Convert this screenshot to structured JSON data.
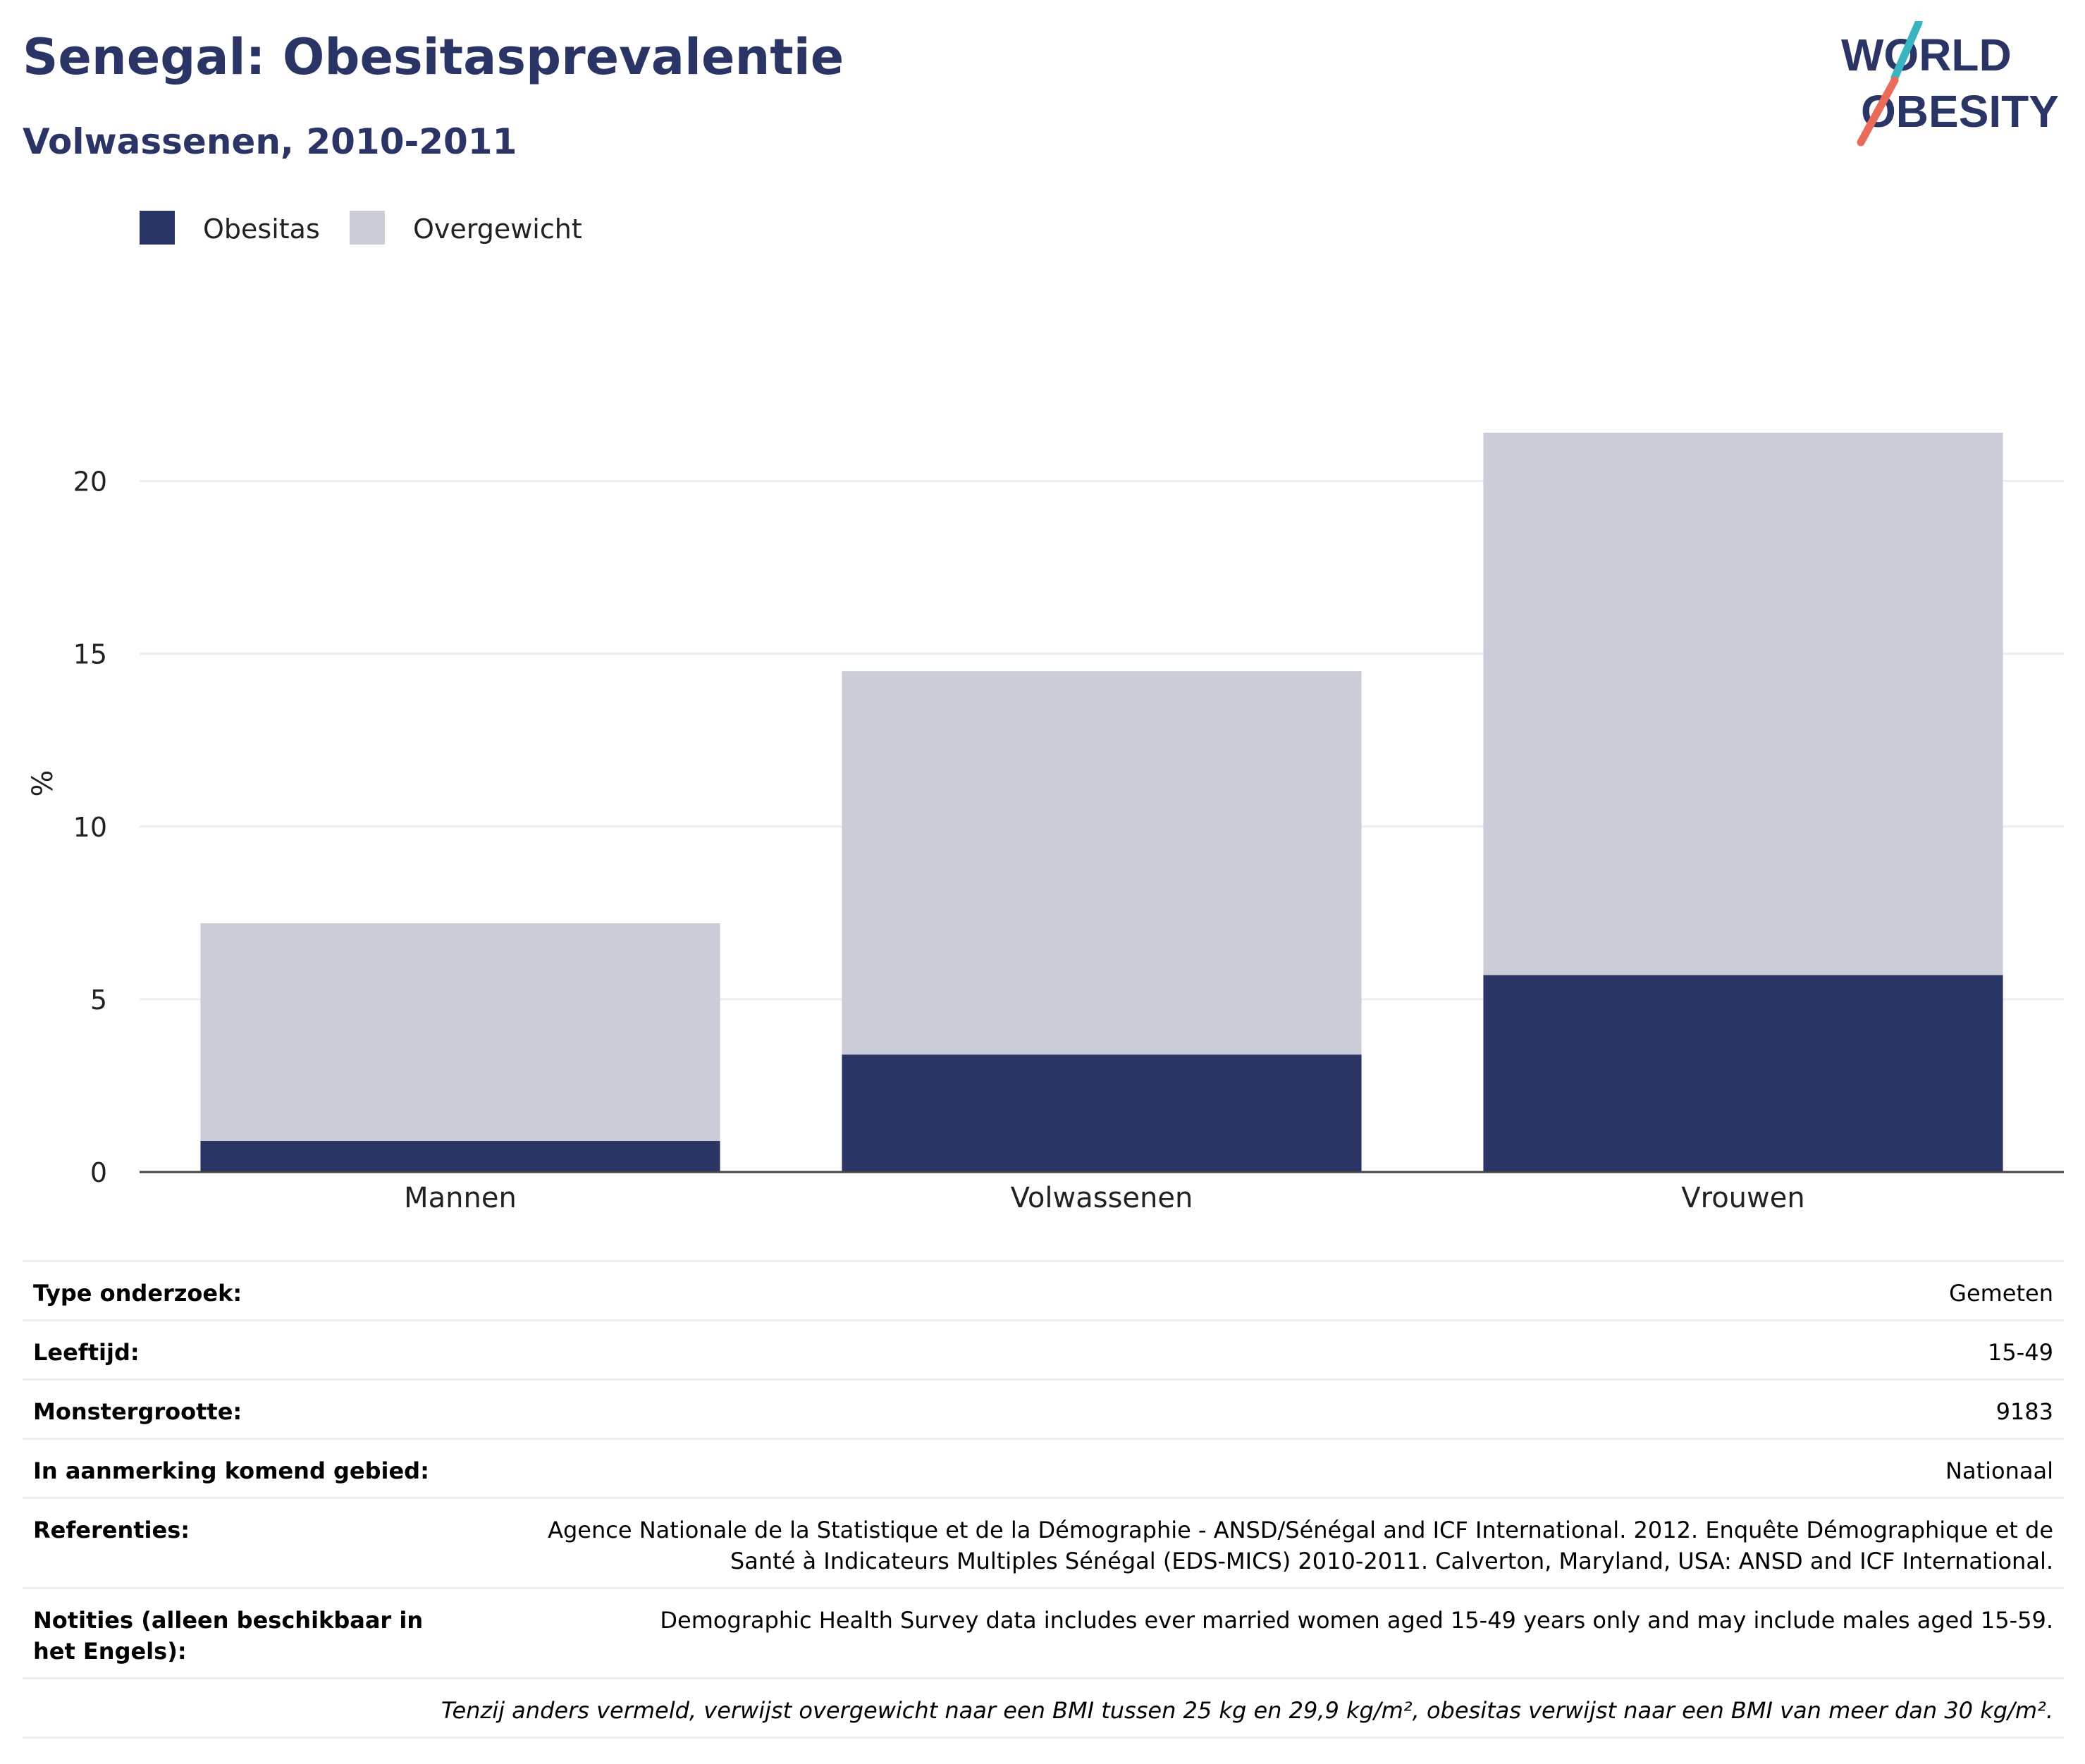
{
  "header": {
    "title": "Senegal: Obesitasprevalentie",
    "subtitle": "Volwassenen, 2010-2011"
  },
  "logo": {
    "line1": "WORLD",
    "line2": "OBESITY"
  },
  "colors": {
    "obesitas": "#2a3565",
    "overgewicht": "#caccd8",
    "text": "#2a3565"
  },
  "chart_data": {
    "type": "bar",
    "stacked": true,
    "categories": [
      "Mannen",
      "Volwassenen",
      "Vrouwen"
    ],
    "series": [
      {
        "name": "Obesitas",
        "values": [
          0.9,
          3.4,
          5.7
        ]
      },
      {
        "name": "Overgewicht",
        "values": [
          6.3,
          11.1,
          15.7
        ]
      }
    ],
    "ylabel": "%",
    "ylim": [
      0,
      22.5
    ],
    "yticks": [
      0,
      5,
      10,
      15,
      20
    ],
    "grid": true,
    "legend": "top-left"
  },
  "info": {
    "rows": [
      {
        "label": "Type onderzoek:",
        "value": "Gemeten"
      },
      {
        "label": "Leeftijd:",
        "value": "15-49"
      },
      {
        "label": "Monstergrootte:",
        "value": "9183"
      },
      {
        "label": "In aanmerking komend gebied:",
        "value": "Nationaal"
      },
      {
        "label": "Referenties:",
        "value": "Agence Nationale de la Statistique et de la Démographie - ANSD/Sénégal and ICF International. 2012. Enquête Démographique et de Santé à Indicateurs Multiples Sénégal (EDS-MICS) 2010-2011. Calverton, Maryland, USA: ANSD and ICF International."
      },
      {
        "label": "Notities (alleen beschikbaar in het Engels):",
        "value": "Demographic Health Survey data includes ever married women aged 15-49 years only and may include males aged 15-59."
      }
    ],
    "note": "Tenzij anders vermeld, verwijst overgewicht naar een BMI tussen 25 kg en 29,9 kg/m², obesitas verwijst naar een BMI van meer dan 30 kg/m²."
  }
}
